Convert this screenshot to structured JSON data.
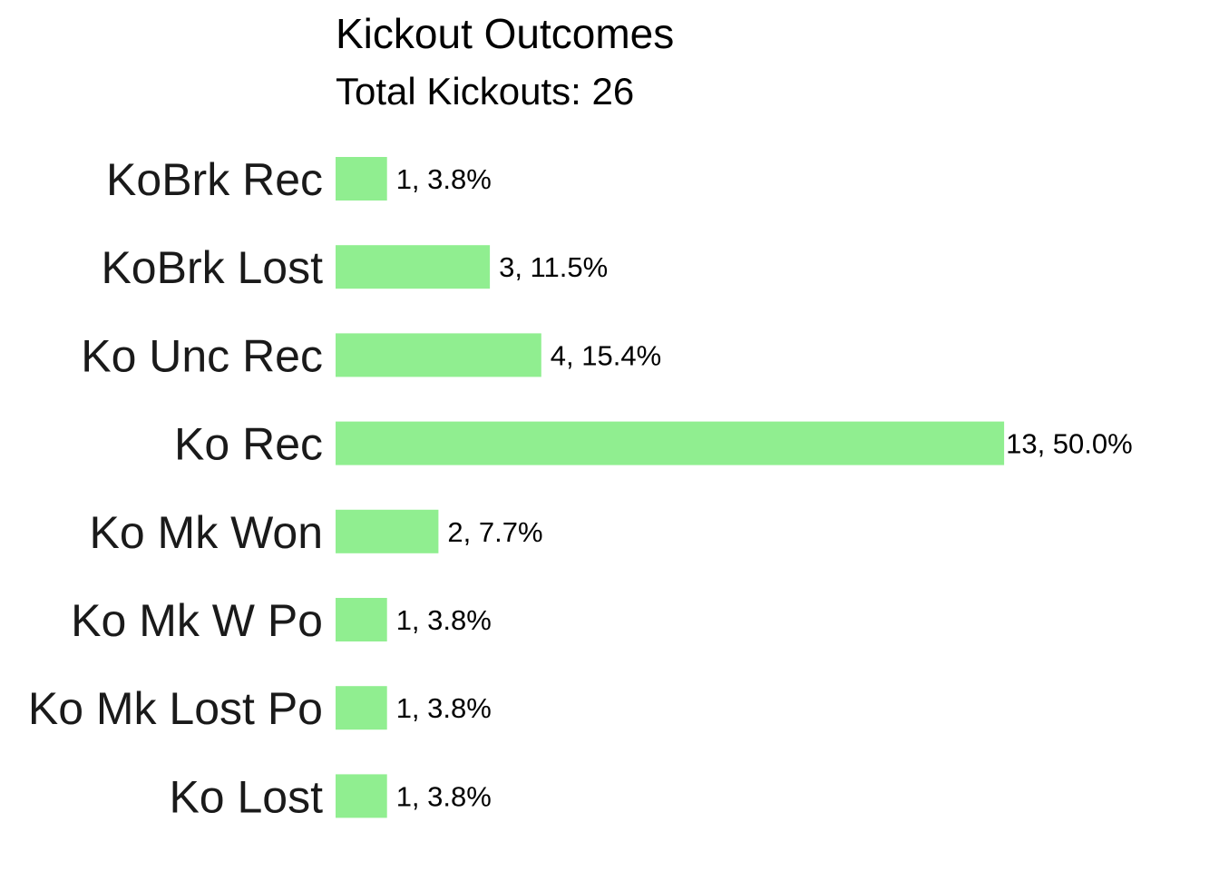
{
  "chart_data": {
    "type": "bar",
    "orientation": "horizontal",
    "title": "Kickout Outcomes",
    "subtitle": "Total Kickouts: 26",
    "categories": [
      "KoBrk Rec",
      "KoBrk Lost",
      "Ko Unc Rec",
      "Ko Rec",
      "Ko Mk Won",
      "Ko Mk W Po",
      "Ko Mk Lost Po",
      "Ko Lost"
    ],
    "values": [
      1,
      3,
      4,
      13,
      2,
      1,
      1,
      1
    ],
    "data_labels": [
      "1, 3.8%",
      "3, 11.5%",
      "4, 15.4%",
      "13, 50.0%",
      "2, 7.7%",
      "1, 3.8%",
      "1, 3.8%",
      "1, 3.8%"
    ],
    "xlabel": "",
    "ylabel": "",
    "xlim": [
      0,
      13
    ],
    "grid": false,
    "legend": "none",
    "bar_color": "#90ee90"
  }
}
